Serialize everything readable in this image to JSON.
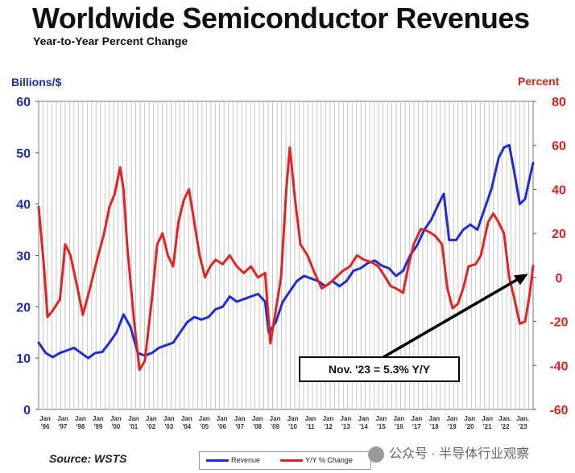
{
  "title": "Worldwide Semiconductor Revenues",
  "subtitle": "Year-to-Year Percent Change",
  "left_axis_label": "Billions/$",
  "right_axis_label": "Percent",
  "source": "Source: WSTS",
  "annotation": "Nov. '23 = 5.3% Y/Y",
  "legend": [
    {
      "label": "Revenue",
      "color": "#1f2bd6"
    },
    {
      "label": "Y/Y % Change",
      "color": "#e02424"
    }
  ],
  "watermark": "公众号 · 半导体行业观察",
  "chart_data": {
    "type": "line",
    "title": "Worldwide Semiconductor Revenues",
    "subtitle": "Year-to-Year Percent Change",
    "x_tick_labels": [
      "Jan '96",
      "Jan '97",
      "Jan '98",
      "Jan '99",
      "Jan '00",
      "Jan '01",
      "Jan '02",
      "Jan '03",
      "Jan '04",
      "Jan '05",
      "Jan '06",
      "Jan '07",
      "Jan '08",
      "Jan '09",
      "Jan '10",
      "Jan '11",
      "Jan '12",
      "Jan '13",
      "Jan '14",
      "Jan '15",
      "Jan '16",
      "Jan '17",
      "Jan '18",
      "Jan '19",
      "Jan '20",
      "Jan '21",
      "Jan. '22",
      "Jan. '23"
    ],
    "x_range": [
      1996.0,
      2023.95
    ],
    "left_axis": {
      "label": "Billions/$",
      "ylim": [
        0,
        60
      ],
      "ticks": [
        0,
        10,
        20,
        30,
        40,
        50,
        60
      ]
    },
    "right_axis": {
      "label": "Percent",
      "ylim": [
        -60,
        80
      ],
      "ticks": [
        -60,
        -40,
        -20,
        0,
        20,
        40,
        60,
        80
      ]
    },
    "grid": "vertical",
    "legend_position": "bottom",
    "series": [
      {
        "name": "Revenue",
        "axis": "left",
        "color": "#1f2bd6",
        "points": [
          [
            1996.0,
            13
          ],
          [
            1996.4,
            11
          ],
          [
            1996.8,
            10.2
          ],
          [
            1997.2,
            11
          ],
          [
            1997.6,
            11.5
          ],
          [
            1998.0,
            12
          ],
          [
            1998.4,
            11
          ],
          [
            1998.8,
            10
          ],
          [
            1999.2,
            11
          ],
          [
            1999.6,
            11.2
          ],
          [
            2000.0,
            13
          ],
          [
            2000.4,
            15
          ],
          [
            2000.8,
            18.5
          ],
          [
            2001.2,
            16
          ],
          [
            2001.6,
            11
          ],
          [
            2002.0,
            10.5
          ],
          [
            2002.4,
            11
          ],
          [
            2002.8,
            12
          ],
          [
            2003.2,
            12.5
          ],
          [
            2003.6,
            13
          ],
          [
            2004.0,
            15
          ],
          [
            2004.4,
            17
          ],
          [
            2004.8,
            18
          ],
          [
            2005.2,
            17.5
          ],
          [
            2005.6,
            18
          ],
          [
            2006.0,
            19.5
          ],
          [
            2006.4,
            20
          ],
          [
            2006.8,
            22
          ],
          [
            2007.2,
            21
          ],
          [
            2007.6,
            21.5
          ],
          [
            2008.0,
            22
          ],
          [
            2008.4,
            22.5
          ],
          [
            2008.8,
            21
          ],
          [
            2009.0,
            15
          ],
          [
            2009.4,
            17
          ],
          [
            2009.8,
            21
          ],
          [
            2010.2,
            23
          ],
          [
            2010.6,
            25
          ],
          [
            2011.0,
            26
          ],
          [
            2011.4,
            25.5
          ],
          [
            2011.8,
            25
          ],
          [
            2012.2,
            24
          ],
          [
            2012.6,
            25
          ],
          [
            2013.0,
            24
          ],
          [
            2013.4,
            25
          ],
          [
            2013.8,
            27
          ],
          [
            2014.2,
            27.5
          ],
          [
            2014.6,
            28.5
          ],
          [
            2015.0,
            29
          ],
          [
            2015.4,
            28
          ],
          [
            2015.8,
            27.5
          ],
          [
            2016.2,
            26
          ],
          [
            2016.6,
            27
          ],
          [
            2017.0,
            30
          ],
          [
            2017.4,
            32
          ],
          [
            2017.8,
            35
          ],
          [
            2018.2,
            37
          ],
          [
            2018.6,
            40
          ],
          [
            2018.9,
            42
          ],
          [
            2019.2,
            33
          ],
          [
            2019.6,
            33
          ],
          [
            2020.0,
            35
          ],
          [
            2020.4,
            36
          ],
          [
            2020.8,
            35
          ],
          [
            2021.2,
            39
          ],
          [
            2021.6,
            43
          ],
          [
            2022.0,
            49
          ],
          [
            2022.3,
            51
          ],
          [
            2022.6,
            51.5
          ],
          [
            2022.9,
            46
          ],
          [
            2023.2,
            40
          ],
          [
            2023.5,
            41
          ],
          [
            2023.75,
            45
          ],
          [
            2023.95,
            48
          ]
        ]
      },
      {
        "name": "Y/Y % Change",
        "axis": "right",
        "color": "#e02424",
        "points": [
          [
            1996.0,
            32
          ],
          [
            1996.3,
            5
          ],
          [
            1996.5,
            -18
          ],
          [
            1996.8,
            -15
          ],
          [
            1997.2,
            -10
          ],
          [
            1997.5,
            15
          ],
          [
            1997.8,
            10
          ],
          [
            1998.2,
            -5
          ],
          [
            1998.5,
            -17
          ],
          [
            1998.9,
            -5
          ],
          [
            1999.3,
            8
          ],
          [
            1999.7,
            20
          ],
          [
            2000.0,
            32
          ],
          [
            2000.3,
            38
          ],
          [
            2000.6,
            50
          ],
          [
            2000.8,
            40
          ],
          [
            2001.0,
            15
          ],
          [
            2001.4,
            -20
          ],
          [
            2001.7,
            -42
          ],
          [
            2002.0,
            -38
          ],
          [
            2002.4,
            -10
          ],
          [
            2002.7,
            15
          ],
          [
            2003.0,
            20
          ],
          [
            2003.3,
            10
          ],
          [
            2003.6,
            5
          ],
          [
            2003.9,
            25
          ],
          [
            2004.2,
            35
          ],
          [
            2004.5,
            40
          ],
          [
            2004.8,
            25
          ],
          [
            2005.1,
            10
          ],
          [
            2005.4,
            0
          ],
          [
            2005.7,
            5
          ],
          [
            2006.0,
            8
          ],
          [
            2006.4,
            6
          ],
          [
            2006.8,
            10
          ],
          [
            2007.2,
            5
          ],
          [
            2007.6,
            2
          ],
          [
            2008.0,
            5
          ],
          [
            2008.4,
            0
          ],
          [
            2008.8,
            2
          ],
          [
            2009.1,
            -30
          ],
          [
            2009.4,
            -15
          ],
          [
            2009.7,
            0
          ],
          [
            2010.0,
            40
          ],
          [
            2010.2,
            59
          ],
          [
            2010.5,
            35
          ],
          [
            2010.8,
            15
          ],
          [
            2011.2,
            10
          ],
          [
            2011.6,
            2
          ],
          [
            2012.0,
            -5
          ],
          [
            2012.4,
            -3
          ],
          [
            2012.8,
            0
          ],
          [
            2013.2,
            3
          ],
          [
            2013.6,
            5
          ],
          [
            2014.0,
            10
          ],
          [
            2014.4,
            8
          ],
          [
            2014.8,
            7
          ],
          [
            2015.2,
            5
          ],
          [
            2015.6,
            0
          ],
          [
            2015.9,
            -4
          ],
          [
            2016.2,
            -5
          ],
          [
            2016.6,
            -7
          ],
          [
            2016.9,
            5
          ],
          [
            2017.2,
            15
          ],
          [
            2017.6,
            22
          ],
          [
            2018.0,
            21
          ],
          [
            2018.4,
            19
          ],
          [
            2018.8,
            15
          ],
          [
            2019.1,
            -5
          ],
          [
            2019.4,
            -14
          ],
          [
            2019.7,
            -12
          ],
          [
            2020.0,
            -5
          ],
          [
            2020.3,
            5
          ],
          [
            2020.7,
            6
          ],
          [
            2021.0,
            10
          ],
          [
            2021.4,
            25
          ],
          [
            2021.7,
            29
          ],
          [
            2022.0,
            25
          ],
          [
            2022.3,
            20
          ],
          [
            2022.6,
            0
          ],
          [
            2022.9,
            -10
          ],
          [
            2023.2,
            -21
          ],
          [
            2023.5,
            -20
          ],
          [
            2023.75,
            -8
          ],
          [
            2023.95,
            5.3
          ]
        ]
      }
    ],
    "annotations": [
      {
        "text": "Nov. '23 = 5.3% Y/Y",
        "points_to": [
          2023.85,
          5.3
        ]
      }
    ]
  }
}
